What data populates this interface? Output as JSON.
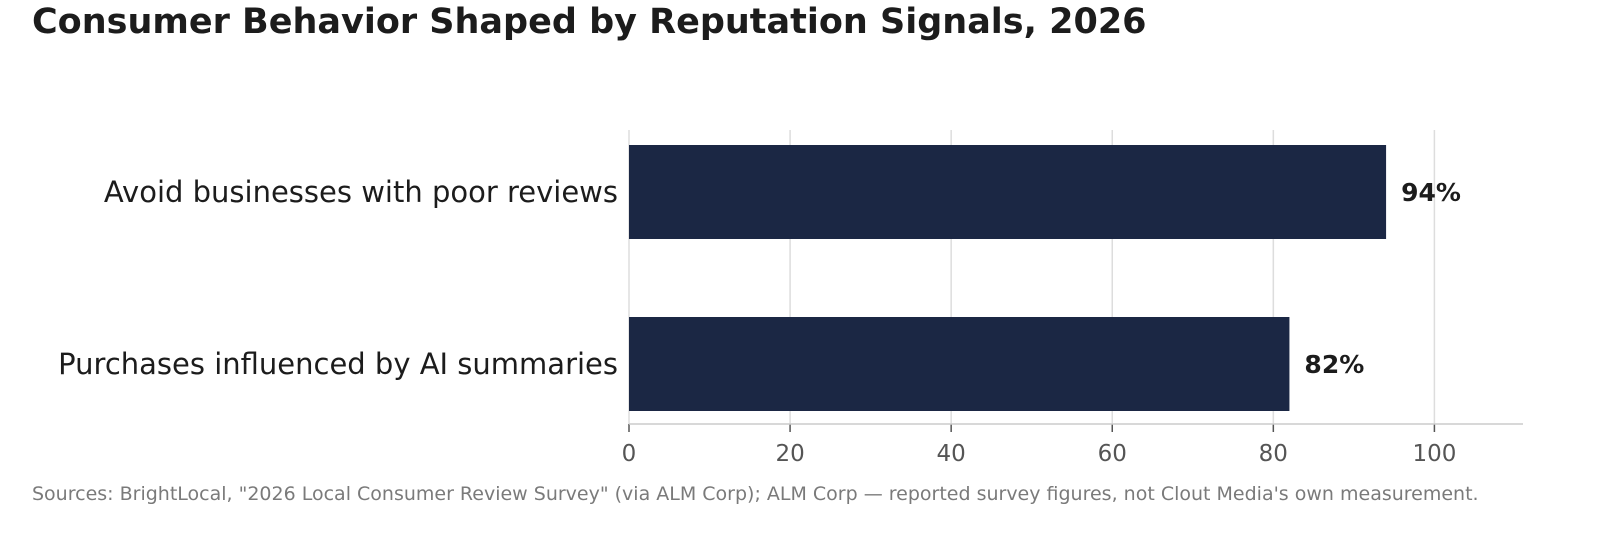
{
  "chart_data": {
    "type": "bar",
    "orientation": "horizontal",
    "title": "Consumer Behavior Shaped by Reputation Signals, 2026",
    "categories": [
      "Avoid businesses with poor reviews",
      "Purchases influenced by AI summaries"
    ],
    "values": [
      94,
      82
    ],
    "value_labels": [
      "94%",
      "82%"
    ],
    "xlim": [
      0,
      111
    ],
    "xticks": [
      0,
      20,
      40,
      60,
      80,
      100
    ],
    "grid": "vertical",
    "bar_color": "#1b2744",
    "grid_color": "#dddddd",
    "xlabel": "",
    "ylabel": ""
  },
  "footer": {
    "source": "Sources: BrightLocal, \"2026 Local Consumer Review Survey\" (via ALM Corp); ALM Corp — reported survey figures, not Clout Media's own measurement."
  }
}
